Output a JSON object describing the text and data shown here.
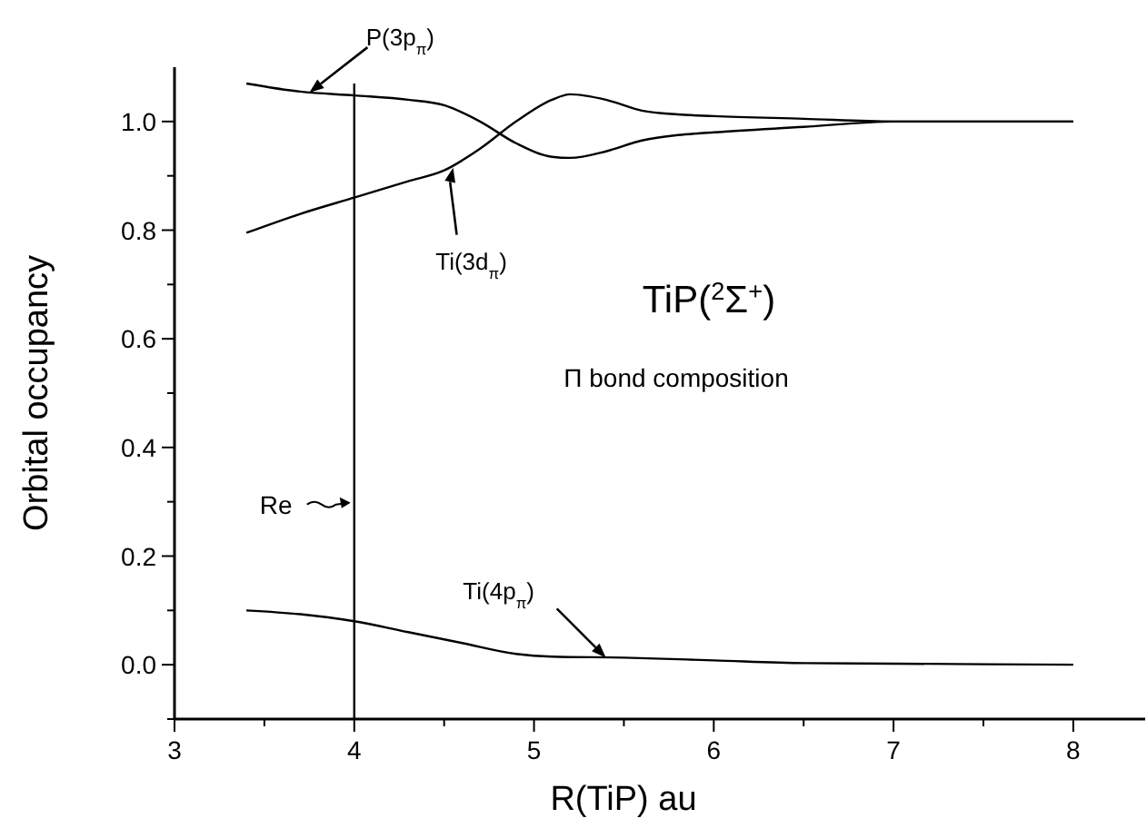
{
  "chart_data": {
    "type": "line",
    "title": "TiP($^{2}$Σ$^{+}$)",
    "subtitle": "Π bond composition",
    "xlabel": "R(TiP) au",
    "ylabel": "Orbital occupancy",
    "xlim": [
      3,
      8.4
    ],
    "ylim": [
      -0.1,
      1.1
    ],
    "xticks": [
      3,
      {
        "value": 3.5,
        "label": null
      },
      4,
      {
        "value": 4.5,
        "label": null
      },
      5,
      {
        "value": 5.5,
        "label": null
      },
      6,
      {
        "value": 6.5,
        "label": null
      },
      7,
      {
        "value": 7.5,
        "label": null
      },
      8
    ],
    "yticks": [
      {
        "value": -0.1,
        "label": null
      },
      {
        "value": 0,
        "label": "0.0"
      },
      {
        "value": 0.1,
        "label": null
      },
      0.2,
      {
        "value": 0.3,
        "label": null
      },
      0.4,
      {
        "value": 0.5,
        "label": null
      },
      0.6,
      {
        "value": 0.7,
        "label": null
      },
      0.8,
      {
        "value": 0.9,
        "label": null
      },
      {
        "value": 1,
        "label": "1.0"
      }
    ],
    "grid": false,
    "marker": "none",
    "line_style": "solid",
    "series": [
      {
        "color": "#000000",
        "x": [
          3.4,
          3.7,
          4,
          4.3,
          4.5,
          4.7,
          4.9,
          5.1,
          5.2,
          5.4,
          5.6,
          5.8,
          6,
          6.5,
          7,
          8
        ],
        "values": [
          1.07,
          1.055,
          1.048,
          1.04,
          1.03,
          1.0,
          0.96,
          0.935,
          0.933,
          0.945,
          0.965,
          0.975,
          0.98,
          0.99,
          1.0,
          1.0
        ]
      },
      {
        "color": "#000000",
        "x": [
          3.4,
          3.7,
          4,
          4.3,
          4.5,
          4.7,
          4.9,
          5.1,
          5.2,
          5.4,
          5.6,
          5.8,
          6,
          6.5,
          7,
          8
        ],
        "values": [
          0.795,
          0.83,
          0.86,
          0.89,
          0.91,
          0.95,
          1.0,
          1.04,
          1.05,
          1.04,
          1.02,
          1.013,
          1.01,
          1.005,
          1.0,
          1.0
        ]
      },
      {
        "color": "#000000",
        "x": [
          3.4,
          3.7,
          4,
          4.3,
          4.6,
          4.9,
          5.1,
          5.5,
          6,
          6.5,
          7,
          8
        ],
        "values": [
          0.1,
          0.093,
          0.08,
          0.06,
          0.04,
          0.02,
          0.015,
          0.013,
          0.008,
          0.003,
          0.002,
          0.0
        ]
      }
    ],
    "ref_lines": [
      {
        "axis": "x",
        "value": 4,
        "label": "Re",
        "color": "#000000"
      }
    ],
    "annotations": [
      {
        "text": "P(3p$_{π}$)",
        "x": 3.75,
        "y": 1.053
      },
      {
        "text": "Ti(3d$_{π}$)",
        "x": 4.55,
        "y": 0.915
      },
      {
        "text": "Ti(4p$_{π}$)",
        "x": 5.4,
        "y": 0.013
      }
    ]
  }
}
